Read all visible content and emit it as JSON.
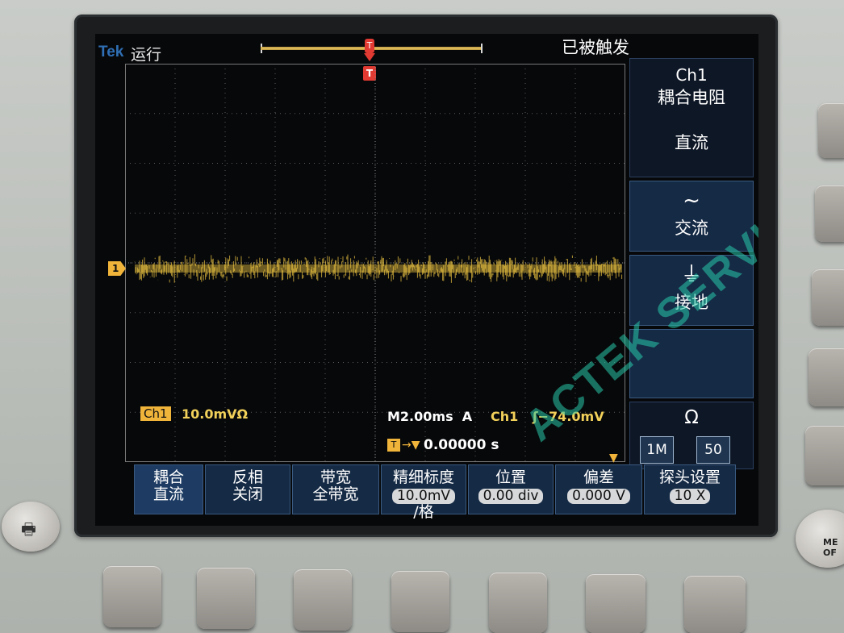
{
  "status_bar": {
    "brand": "Tek",
    "run_state": "运行",
    "trigger_status": "已被触发"
  },
  "markers": {
    "trigger_top": "T",
    "trigger_pos": "T",
    "ch1_ground": "1"
  },
  "readouts": {
    "ch1_label": "Ch1",
    "ch1_scale": "10.0mVΩ",
    "timebase": "M2.00ms",
    "trigger_mode": "A",
    "trigger_channel": "Ch1",
    "trigger_level": "ʃ−74.0mV",
    "trigger_position": "0.00000 s"
  },
  "side_menu": {
    "title_line1": "Ch1",
    "title_line2": "耦合电阻",
    "selected_option": "直流",
    "ac_icon": "~",
    "ac_label": "交流",
    "gnd_icon": "⏚",
    "gnd_label": "接地",
    "impedance_symbol": "Ω",
    "impedance_options": [
      "1M",
      "50"
    ]
  },
  "bottom_menu": [
    {
      "line1": "耦合",
      "line2": "直流"
    },
    {
      "line1": "反相",
      "line2": "关闭"
    },
    {
      "line1": "带宽",
      "line2": "全带宽"
    },
    {
      "line1": "精细标度",
      "value": "10.0mV",
      "line3": "/格"
    },
    {
      "line1": "位置",
      "value": "0.00 div"
    },
    {
      "line1": "偏差",
      "value": "0.000 V"
    },
    {
      "line1": "探头设置",
      "value": "10 X"
    }
  ],
  "watermark": "ACTEK SERVICE",
  "colors": {
    "trace": "#e8c040",
    "menu_bg": "#152a45",
    "trigger_marker": "#e03a32"
  },
  "panel": {
    "print_icon": "printer-icon",
    "menu_button_label": "ME\nOF"
  }
}
